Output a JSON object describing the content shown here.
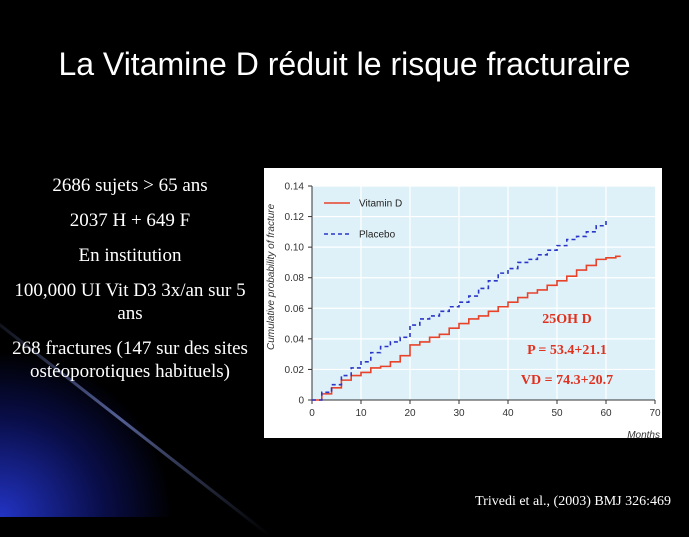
{
  "slide": {
    "title": "La Vitamine D réduit le risque fracturaire",
    "bullets": [
      "2686 sujets  > 65 ans",
      "2037 H + 649 F",
      "En institution",
      "100,000 UI Vit D3 3x/an sur 5 ans",
      "268 fractures (147 sur des sites ostéoporotiques habituels)"
    ],
    "citation": "Trivedi et al., (2003) BMJ 326:469"
  },
  "colors": {
    "background": "#000000",
    "vitamin_d": "#e8432a",
    "placebo": "#2a36c8",
    "plot_bg": "#dff1f8",
    "annotation": "#e0301e"
  },
  "chart_data": {
    "type": "line",
    "ylabel": "Cumulative probability of fracture",
    "xlabel": "Months",
    "xlim": [
      0,
      70
    ],
    "ylim": [
      0,
      0.14
    ],
    "xticks": [
      "0",
      "10",
      "20",
      "30",
      "40",
      "50",
      "60",
      "70"
    ],
    "yticks": [
      "0",
      "0.02",
      "0.04",
      "0.06",
      "0.08",
      "0.10",
      "0.12",
      "0.14"
    ],
    "grid": true,
    "legend_position": "top-left",
    "series": [
      {
        "name": "Vitamin D",
        "style": "solid",
        "x": [
          0,
          2,
          4,
          6,
          8,
          10,
          12,
          14,
          16,
          18,
          20,
          22,
          24,
          26,
          28,
          30,
          32,
          34,
          36,
          38,
          40,
          42,
          44,
          46,
          48,
          50,
          52,
          54,
          56,
          58,
          60,
          62,
          63
        ],
        "y": [
          0,
          0.004,
          0.008,
          0.013,
          0.016,
          0.018,
          0.021,
          0.022,
          0.025,
          0.029,
          0.036,
          0.038,
          0.041,
          0.043,
          0.047,
          0.05,
          0.053,
          0.055,
          0.058,
          0.061,
          0.064,
          0.067,
          0.07,
          0.072,
          0.075,
          0.078,
          0.081,
          0.085,
          0.088,
          0.092,
          0.093,
          0.094,
          0.094
        ]
      },
      {
        "name": "Placebo",
        "style": "dashed",
        "x": [
          0,
          2,
          4,
          6,
          8,
          10,
          12,
          14,
          16,
          18,
          20,
          22,
          24,
          26,
          28,
          30,
          32,
          34,
          36,
          38,
          40,
          42,
          44,
          46,
          48,
          50,
          52,
          54,
          56,
          58,
          60
        ],
        "y": [
          0,
          0.005,
          0.01,
          0.016,
          0.021,
          0.025,
          0.031,
          0.035,
          0.038,
          0.041,
          0.049,
          0.053,
          0.055,
          0.058,
          0.061,
          0.064,
          0.068,
          0.073,
          0.078,
          0.083,
          0.086,
          0.09,
          0.092,
          0.095,
          0.098,
          0.101,
          0.105,
          0.107,
          0.11,
          0.114,
          0.119
        ]
      }
    ],
    "annotations": [
      "25OH D",
      "P = 53.4+21.1",
      "VD = 74.3+20.7"
    ]
  }
}
